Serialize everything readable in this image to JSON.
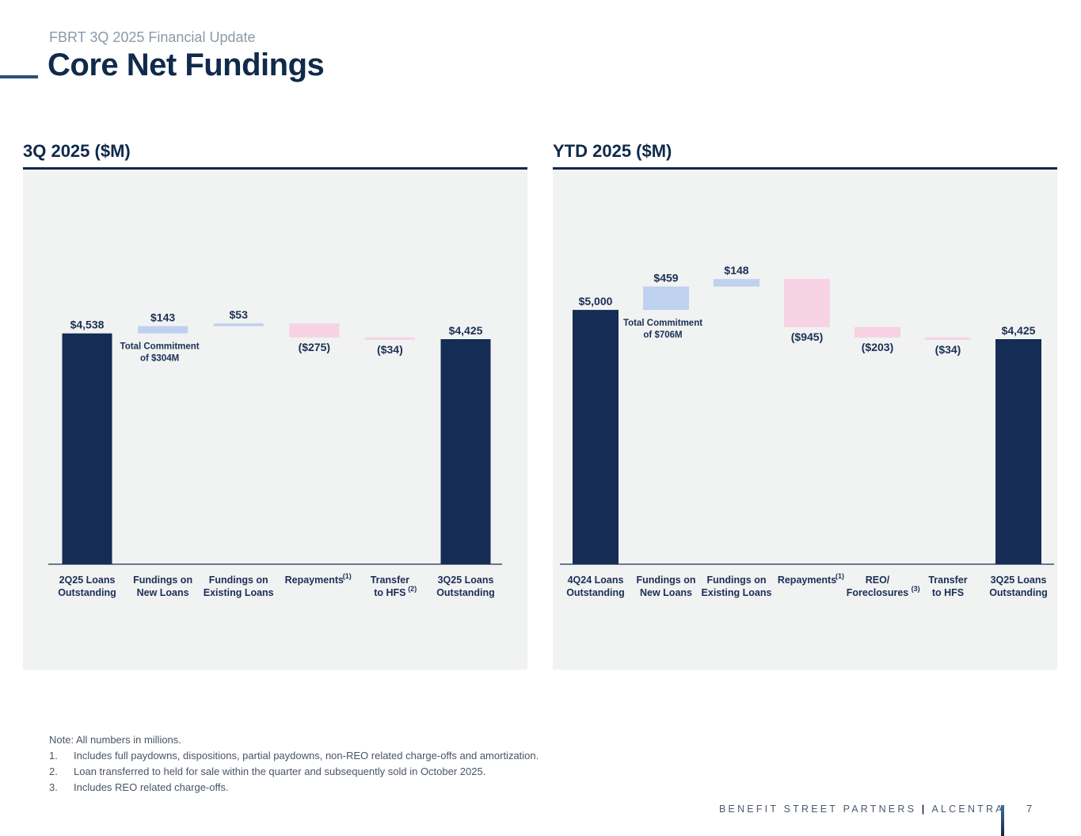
{
  "header": {
    "subtitle": "FBRT 3Q 2025 Financial Update",
    "title": "Core Net Fundings"
  },
  "colors": {
    "total": "#152c54",
    "increase": "#bed1ef",
    "decrease": "#f6d2e2",
    "panel_bg": "#f1f2f2"
  },
  "chart_data": [
    {
      "type": "waterfall",
      "title": "3Q 2025 ($M)",
      "unit": "$M",
      "ylim": [
        0,
        5500
      ],
      "categories": [
        "2Q25 Loans Outstanding",
        "Fundings on New Loans",
        "Fundings on Existing Loans",
        "Repayments",
        "Transfer to HFS",
        "3Q25 Loans Outstanding"
      ],
      "category_lines": [
        [
          "2Q25 Loans",
          "Outstanding"
        ],
        [
          "Fundings on",
          "New Loans"
        ],
        [
          "Fundings on",
          "Existing Loans"
        ],
        [
          "Repayments"
        ],
        [
          "Transfer",
          "to HFS"
        ],
        [
          "3Q25 Loans",
          "Outstanding"
        ]
      ],
      "footnote_marks": [
        "",
        "",
        "",
        "(1)",
        "(2)",
        ""
      ],
      "kinds": [
        "total",
        "increase",
        "increase",
        "decrease",
        "decrease",
        "total"
      ],
      "values": [
        4538,
        143,
        53,
        -275,
        -34,
        4425
      ],
      "value_labels": [
        "$4,538",
        "$143",
        "$53",
        "($275)",
        "($34)",
        "$4,425"
      ],
      "annotation": {
        "category_index": 1,
        "lines": [
          "Total Commitment",
          "of $304M"
        ]
      }
    },
    {
      "type": "waterfall",
      "title": "YTD 2025 ($M)",
      "unit": "$M",
      "ylim": [
        0,
        5500
      ],
      "categories": [
        "4Q24 Loans Outstanding",
        "Fundings on New Loans",
        "Fundings on Existing Loans",
        "Repayments",
        "REO/ Foreclosures",
        "Transfer to HFS",
        "3Q25 Loans Outstanding"
      ],
      "category_lines": [
        [
          "4Q24 Loans",
          "Outstanding"
        ],
        [
          "Fundings on",
          "New Loans"
        ],
        [
          "Fundings on",
          "Existing Loans"
        ],
        [
          "Repayments"
        ],
        [
          "REO/",
          "Foreclosures"
        ],
        [
          "Transfer",
          "to HFS"
        ],
        [
          "3Q25 Loans",
          "Outstanding"
        ]
      ],
      "footnote_marks": [
        "",
        "",
        "",
        "(1)",
        "(3)",
        "",
        ""
      ],
      "kinds": [
        "total",
        "increase",
        "increase",
        "decrease",
        "decrease",
        "decrease",
        "total"
      ],
      "values": [
        5000,
        459,
        148,
        -945,
        -203,
        -34,
        4425
      ],
      "value_labels": [
        "$5,000",
        "$459",
        "$148",
        "($945)",
        "($203)",
        "($34)",
        "$4,425"
      ],
      "annotation": {
        "category_index": 1,
        "lines": [
          "Total Commitment",
          "of $706M"
        ]
      }
    }
  ],
  "notes": {
    "intro": "Note: All numbers in millions.",
    "items": [
      {
        "num": "1.",
        "text": "Includes full paydowns, dispositions, partial paydowns, non-REO related charge-offs and amortization."
      },
      {
        "num": "2.",
        "text": "Loan transferred to held for sale within the quarter and subsequently sold in October 2025."
      },
      {
        "num": "3.",
        "text": "Includes REO related charge-offs."
      }
    ]
  },
  "footer": {
    "brand_left": "BENEFIT STREET PARTNERS",
    "separator": "|",
    "brand_right": "ALCENTRA",
    "page_number": "7"
  }
}
